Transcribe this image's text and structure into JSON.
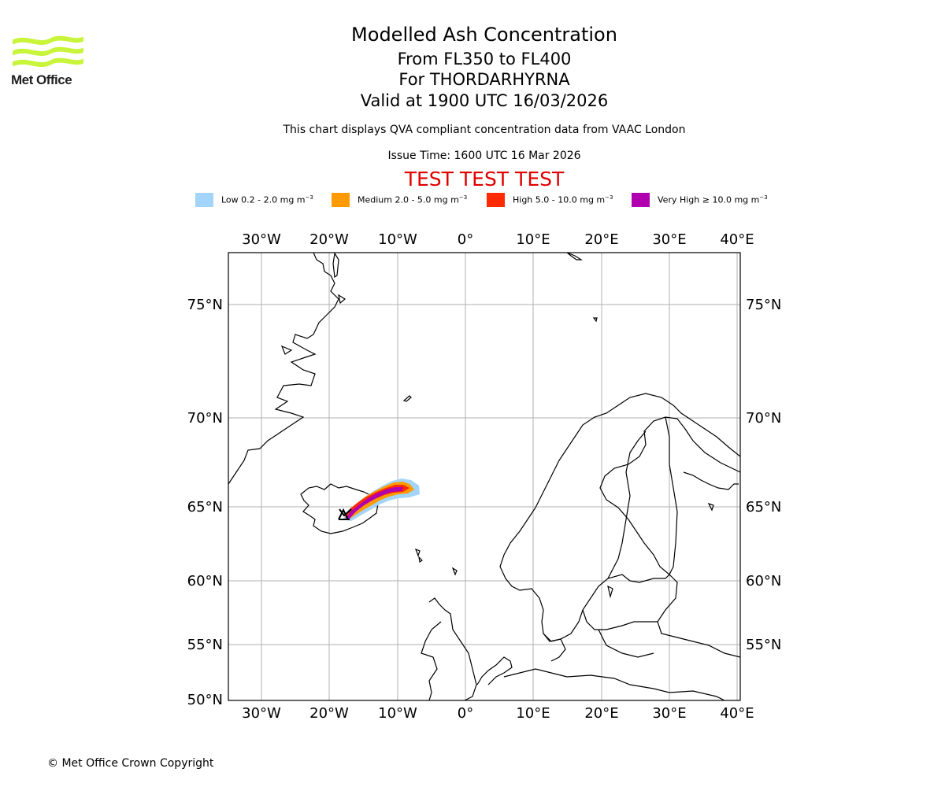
{
  "brand": {
    "name": "Met Office",
    "logo_color": "#c8f53a"
  },
  "title": {
    "main": "Modelled Ash Concentration",
    "levels": "From FL350 to FL400",
    "volcano": "For THORDARHYRNA",
    "valid": "Valid at 1900 UTC 16/03/2026"
  },
  "description": "This chart displays QVA compliant concentration data from VAAC London",
  "issue_time": "Issue Time: 1600 UTC 16 Mar 2026",
  "test_banner": "TEST TEST TEST",
  "legend": [
    {
      "label_prefix": "Low 0.2 - 2.0 mg m",
      "exp": "−3",
      "color": "#a3d4fb"
    },
    {
      "label_prefix": "Medium 2.0 - 5.0 mg m",
      "exp": "−3",
      "color": "#ff9a00"
    },
    {
      "label_prefix": "High 5.0 - 10.0 mg m",
      "exp": "−3",
      "color": "#ff2a00"
    },
    {
      "label_prefix": "Very High ≥ 10.0 mg m",
      "exp": "−3",
      "color": "#b000b0"
    }
  ],
  "map": {
    "lon_labels": [
      "30°W",
      "20°W",
      "10°W",
      "0°",
      "10°E",
      "20°E",
      "30°E",
      "40°E"
    ],
    "lat_labels": [
      "75°N",
      "70°N",
      "65°N",
      "60°N",
      "55°N",
      "50°N"
    ],
    "volcano_marker": "volcano-triangle"
  },
  "copyright": "© Met Office Crown Copyright"
}
